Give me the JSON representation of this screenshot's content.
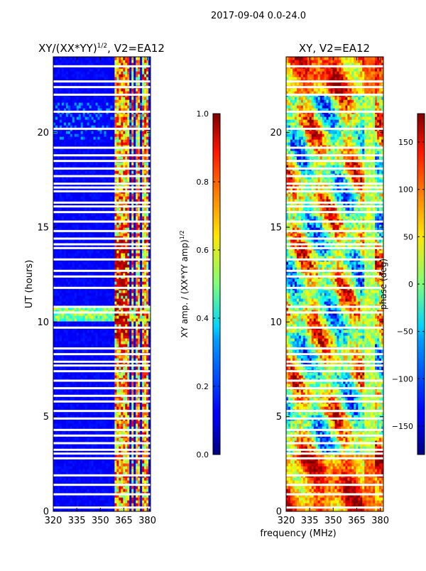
{
  "figure": {
    "suptitle": "2017-09-04 0.0-24.0",
    "shared_xlabel": "frequency (MHz)"
  },
  "chart_data": [
    {
      "type": "heatmap",
      "title": "XY/(XX*YY)",
      "title_exponent": "1/2",
      "title_suffix": ", V2=EA12",
      "xlabel": "",
      "ylabel": "UT (hours)",
      "xlim": [
        320,
        382
      ],
      "ylim": [
        0,
        24
      ],
      "x_ticks": [
        320,
        335,
        350,
        365,
        380
      ],
      "y_ticks": [
        0,
        5,
        10,
        15,
        20
      ],
      "active_band_mhz": [
        [
          359,
          363
        ],
        [
          363.5,
          364.5
        ],
        [
          365,
          369
        ],
        [
          370,
          371
        ],
        [
          372,
          375
        ],
        [
          376,
          380
        ]
      ],
      "blank_rows_ut": [
        0.2,
        0.9,
        1.4,
        1.9,
        2.8,
        3.05,
        3.25,
        3.6,
        4.0,
        4.3,
        4.9,
        5.3,
        5.8,
        6.1,
        6.5,
        6.9,
        7.4,
        7.7,
        7.9,
        8.3,
        8.6,
        9.7,
        10.5,
        10.8,
        11.8,
        12.4,
        12.7,
        13.3,
        13.9,
        14.1,
        14.4,
        14.8,
        15.3,
        15.8,
        16.1,
        16.3,
        16.9,
        17.1,
        17.3,
        17.7,
        18.1,
        18.5,
        18.8,
        19.2,
        20.2,
        21.1,
        22.0,
        22.4,
        22.7,
        23.5
      ],
      "colorbar": {
        "label": "XY amp. / (XX*YY amp)",
        "label_exponent": "1/2",
        "range": [
          0.0,
          1.0
        ],
        "ticks": [
          0.0,
          0.2,
          0.4,
          0.6,
          0.8,
          1.0
        ],
        "tick_labels": [
          "0.0",
          "0.2",
          "0.4",
          "0.6",
          "0.8",
          "1.0"
        ],
        "colormap": "jet"
      }
    },
    {
      "type": "heatmap",
      "title": "XY, V2=EA12",
      "xlabel": "frequency (MHz)",
      "ylabel": "",
      "xlim": [
        320,
        382
      ],
      "ylim": [
        0,
        24
      ],
      "x_ticks": [
        320,
        335,
        350,
        365,
        380
      ],
      "y_ticks": [
        0,
        5,
        10,
        15,
        20
      ],
      "blank_rows_ut": [
        0.2,
        0.9,
        1.4,
        1.9,
        2.8,
        3.05,
        3.25,
        3.6,
        4.0,
        4.3,
        4.9,
        5.3,
        5.8,
        6.1,
        6.5,
        6.9,
        7.4,
        7.7,
        7.9,
        8.3,
        8.6,
        9.7,
        10.5,
        10.8,
        11.8,
        12.4,
        12.7,
        13.3,
        13.9,
        14.1,
        14.4,
        14.8,
        15.3,
        15.8,
        16.1,
        16.3,
        16.9,
        17.1,
        17.3,
        17.7,
        18.1,
        18.5,
        18.8,
        19.2,
        20.2,
        21.1,
        22.0,
        22.4,
        22.7,
        23.5
      ],
      "colorbar": {
        "label": "phase (deg)",
        "range": [
          -180,
          180
        ],
        "ticks": [
          -150,
          -100,
          -50,
          0,
          50,
          100,
          150
        ],
        "tick_labels": [
          "−150",
          "−100",
          "−50",
          "0",
          "50",
          "100",
          "150"
        ],
        "colormap": "jet"
      }
    }
  ]
}
